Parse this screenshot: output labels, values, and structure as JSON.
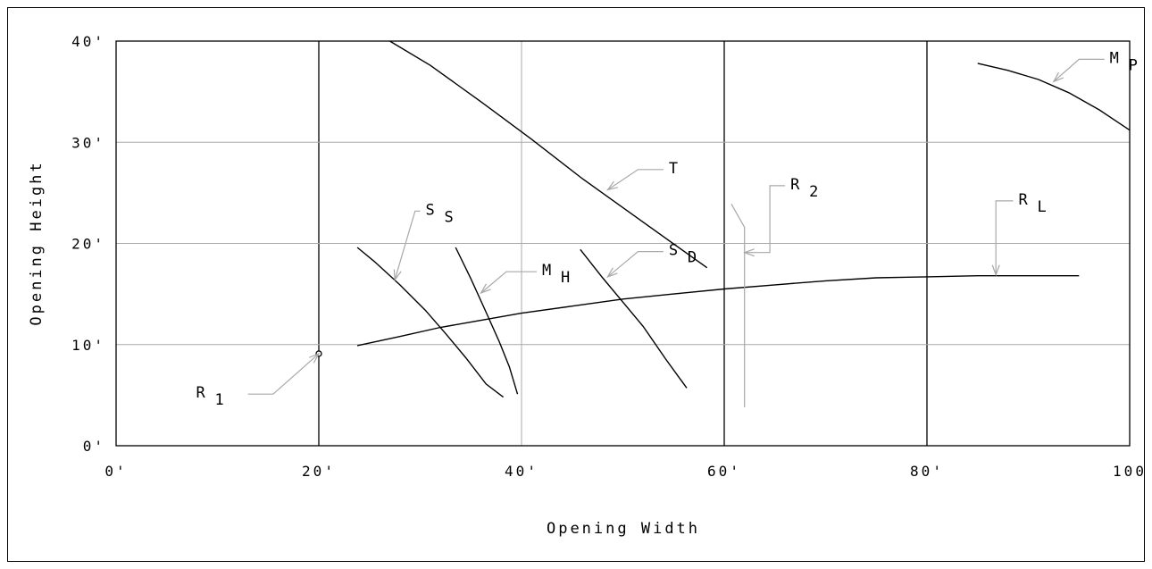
{
  "chart_data": {
    "type": "line",
    "xlabel": "Opening Width",
    "ylabel": "Opening Height",
    "xlim": [
      0,
      100
    ],
    "ylim": [
      0,
      40
    ],
    "x_ticks": [
      0,
      20,
      40,
      60,
      80,
      100
    ],
    "y_ticks": [
      0,
      10,
      20,
      30,
      40
    ],
    "x_tick_labels": [
      "0'",
      "20'",
      "40'",
      "60'",
      "80'",
      "100"
    ],
    "y_tick_labels": [
      "0'",
      "10'",
      "20'",
      "30'",
      "40'"
    ],
    "grid": true,
    "bold_verticals": [
      20,
      60,
      80
    ],
    "series": [
      {
        "name": "T",
        "x": [
          27,
          31,
          36,
          41,
          46,
          52,
          58.3
        ],
        "y": [
          40,
          37.6,
          34,
          30.3,
          26.4,
          22.1,
          17.6
        ]
      },
      {
        "name": "S_S",
        "x": [
          23.8,
          25.5,
          28,
          30.5,
          32.5,
          34.5,
          36.5,
          38.2
        ],
        "y": [
          19.6,
          18.2,
          15.9,
          13.4,
          11.1,
          8.7,
          6.1,
          4.8
        ]
      },
      {
        "name": "M_H",
        "x": [
          33.5,
          35,
          36.5,
          37.8,
          38.8,
          39.6
        ],
        "y": [
          19.6,
          16.5,
          13.2,
          10.3,
          7.8,
          5.1
        ]
      },
      {
        "name": "S_D",
        "x": [
          45.8,
          48,
          50,
          52,
          54.2,
          56.3
        ],
        "y": [
          19.4,
          16.6,
          14.2,
          11.8,
          8.6,
          5.7
        ]
      },
      {
        "name": "R_L",
        "x": [
          23.8,
          28,
          32,
          36,
          40,
          45,
          50,
          55,
          60,
          65,
          70,
          75,
          80,
          85,
          90,
          95
        ],
        "y": [
          9.9,
          10.8,
          11.7,
          12.4,
          13.1,
          13.8,
          14.5,
          15.0,
          15.5,
          15.9,
          16.3,
          16.6,
          16.7,
          16.8,
          16.8,
          16.8
        ]
      },
      {
        "name": "M_P",
        "x": [
          85,
          88,
          91,
          94,
          97,
          100
        ],
        "y": [
          37.8,
          37.1,
          36.2,
          34.9,
          33.2,
          31.2
        ]
      },
      {
        "name": "R_2",
        "x": [
          60.7,
          62,
          62
        ],
        "y": [
          23.9,
          21.6,
          3.8
        ]
      },
      {
        "name": "R_1",
        "x": [
          20
        ],
        "y": [
          9.1
        ]
      }
    ],
    "annotations": [
      {
        "main": "T",
        "sub": "",
        "target": [
          48.5,
          25.3
        ],
        "elbow": [
          51.5,
          27.3
        ],
        "end": [
          54,
          27.3
        ]
      },
      {
        "main": "S",
        "sub": "S",
        "target": [
          27.5,
          16.4
        ],
        "elbow": [
          29.5,
          23.2
        ],
        "end": [
          30,
          23.2
        ]
      },
      {
        "main": "M",
        "sub": "H",
        "target": [
          36,
          15.1
        ],
        "elbow": [
          38.5,
          17.2
        ],
        "end": [
          41.5,
          17.2
        ]
      },
      {
        "main": "S",
        "sub": "D",
        "target": [
          48.5,
          16.7
        ],
        "elbow": [
          51.5,
          19.2
        ],
        "end": [
          54,
          19.2
        ]
      },
      {
        "main": "R",
        "sub": "2",
        "target": [
          62,
          19.1
        ],
        "elbow": [
          64.5,
          19.1
        ],
        "end": [
          64.5,
          25.7
        ],
        "end2": [
          66,
          25.7
        ]
      },
      {
        "main": "R",
        "sub": "L",
        "target": [
          86.8,
          16.9
        ],
        "elbow": [
          86.8,
          24.2
        ],
        "end": [
          88.5,
          24.2
        ]
      },
      {
        "main": "M",
        "sub": "P",
        "target": [
          92.5,
          36
        ],
        "elbow": [
          95,
          38.2
        ],
        "end": [
          97.5,
          38.2
        ]
      },
      {
        "main": "R",
        "sub": "1",
        "target": [
          20,
          9.1
        ],
        "elbow": [
          15.5,
          5.1
        ],
        "end": [
          13,
          5.1
        ]
      }
    ]
  }
}
